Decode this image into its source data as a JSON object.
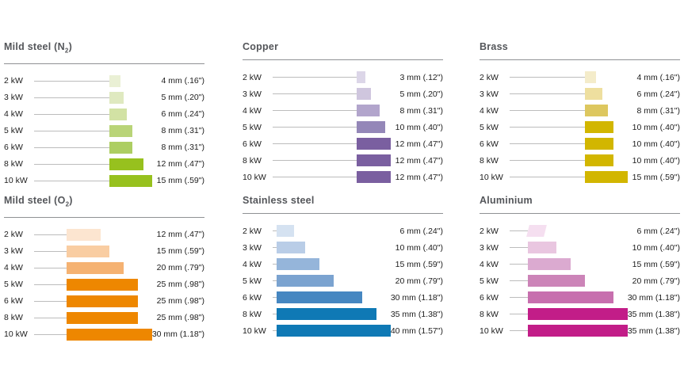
{
  "page": {
    "background": "#ffffff",
    "text_color": "#1c1c1c",
    "title_color": "#54565a",
    "leader_line_color": "#bcbcbc",
    "rule_color": "#8f9194"
  },
  "chart_data": [
    {
      "type": "bar",
      "orientation": "horizontal",
      "title": "Mild steel (N₂)",
      "unit": "mm",
      "xlim_mm": [
        0,
        15
      ],
      "categories": [
        "2 kW",
        "3 kW",
        "4 kW",
        "5 kW",
        "6 kW",
        "8 kW",
        "10 kW"
      ],
      "values_mm": [
        4,
        5,
        6,
        8,
        8,
        12,
        15
      ],
      "value_labels": [
        "4 mm (.16\")",
        "5 mm (.20\")",
        "6 mm (.24\")",
        "8 mm (.31\")",
        "8 mm (.31\")",
        "12 mm (.47\")",
        "15 mm (.59\")"
      ],
      "bar_colors": [
        "#eaf0d5",
        "#dfe9c0",
        "#d2e2a4",
        "#b9d478",
        "#adce62",
        "#97c11e",
        "#97c11e"
      ]
    },
    {
      "type": "bar",
      "orientation": "horizontal",
      "title": "Copper",
      "unit": "mm",
      "xlim_mm": [
        0,
        12
      ],
      "categories": [
        "2 kW",
        "3 kW",
        "4 kW",
        "5 kW",
        "6 kW",
        "8 kW",
        "10 kW"
      ],
      "values_mm": [
        3,
        5,
        8,
        10,
        12,
        12,
        12
      ],
      "value_labels": [
        "3 mm (.12\")",
        "5 mm (.20\")",
        "8 mm (.31\")",
        "10 mm (.40\")",
        "12 mm (.47\")",
        "12 mm (.47\")",
        "12 mm (.47\")"
      ],
      "bar_colors": [
        "#dcd6e8",
        "#cfc6de",
        "#b2a5cc",
        "#9487b8",
        "#7a5fa0",
        "#7a5fa0",
        "#7a5fa0"
      ]
    },
    {
      "type": "bar",
      "orientation": "horizontal",
      "title": "Brass",
      "unit": "mm",
      "xlim_mm": [
        0,
        15
      ],
      "categories": [
        "2 kW",
        "3 kW",
        "4 kW",
        "5 kW",
        "6 kW",
        "8 kW",
        "10 kW"
      ],
      "values_mm": [
        4,
        6,
        8,
        10,
        10,
        10,
        15
      ],
      "value_labels": [
        "4 mm (.16\")",
        "6 mm (.24\")",
        "8 mm (.31\")",
        "10 mm (.40\")",
        "10 mm (.40\")",
        "10 mm (.40\")",
        "15 mm (.59\")"
      ],
      "bar_colors": [
        "#f4ecca",
        "#eedf9f",
        "#ddc75f",
        "#d2b600",
        "#d2b600",
        "#d2b600",
        "#d2b600"
      ]
    },
    {
      "type": "bar",
      "orientation": "horizontal",
      "title": "Mild steel (O₂)",
      "unit": "mm",
      "xlim_mm": [
        0,
        30
      ],
      "categories": [
        "2 kW",
        "3 kW",
        "4 kW",
        "5 kW",
        "6 kW",
        "8 kW",
        "10 kW"
      ],
      "values_mm": [
        12,
        15,
        20,
        25,
        25,
        25,
        30
      ],
      "value_labels": [
        "12 mm (.47\")",
        "15 mm (.59\")",
        "20 mm (.79\")",
        "25 mm (.98\")",
        "25 mm (.98\")",
        "25 mm (.98\")",
        "30 mm (1.18\")"
      ],
      "bar_colors": [
        "#fce5d0",
        "#f9cda2",
        "#f5b272",
        "#ee8700",
        "#ee8700",
        "#ee8700",
        "#ee8700"
      ]
    },
    {
      "type": "bar",
      "orientation": "horizontal",
      "title": "Stainless steel",
      "unit": "mm",
      "xlim_mm": [
        0,
        40
      ],
      "categories": [
        "2 kW",
        "3 kW",
        "4 kW",
        "5 kW",
        "6 kW",
        "8 kW",
        "10 kW"
      ],
      "values_mm": [
        6,
        10,
        15,
        20,
        30,
        35,
        40
      ],
      "value_labels": [
        "6 mm (.24\")",
        "10 mm (.40\")",
        "15 mm (.59\")",
        "20 mm (.79\")",
        "30 mm (1.18\")",
        "35 mm (1.38\")",
        "40 mm (1.57\")"
      ],
      "bar_colors": [
        "#d5e2f1",
        "#b9cde7",
        "#95b5da",
        "#7ba3d0",
        "#4687c1",
        "#0f79b5",
        "#0f79b5"
      ]
    },
    {
      "type": "bar",
      "orientation": "horizontal",
      "title": "Aluminium",
      "unit": "mm",
      "xlim_mm": [
        0,
        35
      ],
      "categories": [
        "2 kW",
        "3 kW",
        "4 kW",
        "5 kW",
        "6 kW",
        "8 kW",
        "10 kW"
      ],
      "values_mm": [
        6,
        10,
        15,
        20,
        30,
        35,
        35
      ],
      "value_labels": [
        "6 mm (.24\")",
        "10 mm (.40\")",
        "15 mm (.59\")",
        "20 mm (.79\")",
        "30 mm (1.18\")",
        "35 mm (1.38\")",
        "35 mm (1.38\")"
      ],
      "bar_colors": [
        "#f5dff0",
        "#e9c6e0",
        "#dbaad0",
        "#cc84b8",
        "#c76fae",
        "#c21d88",
        "#c21d88"
      ],
      "skewed_rows": [
        0
      ]
    }
  ]
}
